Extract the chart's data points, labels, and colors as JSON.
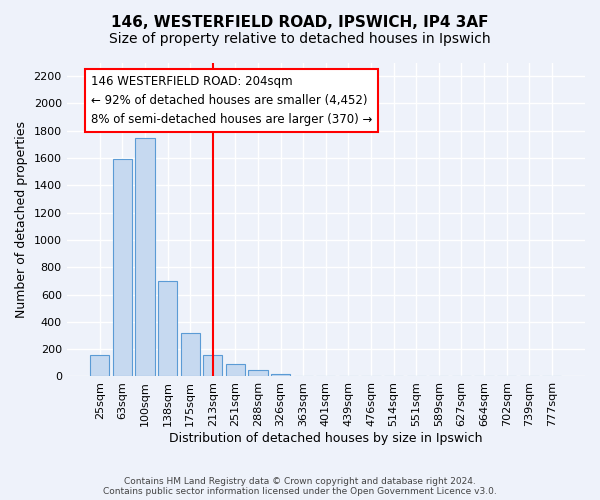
{
  "title": "146, WESTERFIELD ROAD, IPSWICH, IP4 3AF",
  "subtitle": "Size of property relative to detached houses in Ipswich",
  "xlabel": "Distribution of detached houses by size in Ipswich",
  "ylabel": "Number of detached properties",
  "bar_labels": [
    "25sqm",
    "63sqm",
    "100sqm",
    "138sqm",
    "175sqm",
    "213sqm",
    "251sqm",
    "288sqm",
    "326sqm",
    "363sqm",
    "401sqm",
    "439sqm",
    "476sqm",
    "514sqm",
    "551sqm",
    "589sqm",
    "627sqm",
    "664sqm",
    "702sqm",
    "739sqm",
    "777sqm"
  ],
  "bar_values": [
    160,
    1590,
    1750,
    700,
    320,
    160,
    90,
    50,
    20,
    0,
    0,
    0,
    0,
    0,
    0,
    0,
    0,
    0,
    0,
    0,
    0
  ],
  "bar_color": "#c6d9f0",
  "bar_edge_color": "#5b9bd5",
  "vline_x": 5,
  "vline_color": "red",
  "ylim": [
    0,
    2300
  ],
  "yticks": [
    0,
    200,
    400,
    600,
    800,
    1000,
    1200,
    1400,
    1600,
    1800,
    2000,
    2200
  ],
  "annotation_title": "146 WESTERFIELD ROAD: 204sqm",
  "annotation_line1": "← 92% of detached houses are smaller (4,452)",
  "annotation_line2": "8% of semi-detached houses are larger (370) →",
  "box_color": "red",
  "footer_line1": "Contains HM Land Registry data © Crown copyright and database right 2024.",
  "footer_line2": "Contains public sector information licensed under the Open Government Licence v3.0.",
  "background_color": "#eef2fa",
  "grid_color": "#ffffff",
  "title_fontsize": 11,
  "subtitle_fontsize": 10,
  "axis_fontsize": 9,
  "tick_fontsize": 8,
  "annotation_fontsize": 8.5,
  "footer_fontsize": 6.5
}
